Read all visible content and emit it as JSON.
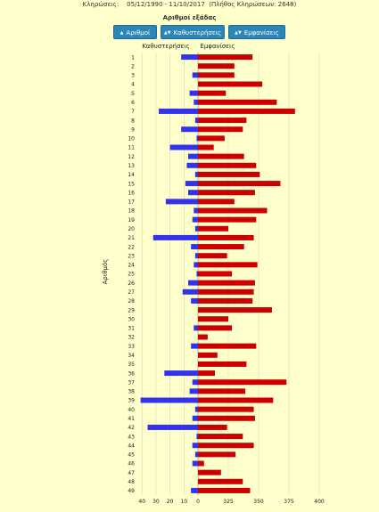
{
  "header": {
    "draws_label": "Κληρώσεις:",
    "date_range": "05/12/1990 - 11/10/2017",
    "draw_count_text": "(Πλήθος Κληρώσεων: 2648)"
  },
  "controls": {
    "sort_numbers": {
      "label": "Αριθμοί",
      "icon": "sort-up-icon"
    },
    "sort_delays": {
      "label": "Καθυστερήσεις",
      "icon": "sort-icon"
    },
    "sort_appearances": {
      "label": "Εμφανίσεις",
      "icon": "sort-icon"
    }
  },
  "colors": {
    "delays": "#3333ee",
    "appearances": "#cc0000",
    "background": "#ffffcc",
    "button": "#2b86b6"
  },
  "chart_data": {
    "type": "bar",
    "orientation": "horizontal",
    "title": "Αριθμοί εξάδας",
    "ylabel": "Αριθμός",
    "left_header": "Καθυστερήσεις",
    "right_header": "Εμφανίσεις",
    "categories": [
      "1",
      "2",
      "3",
      "4",
      "5",
      "6",
      "7",
      "8",
      "9",
      "10",
      "11",
      "12",
      "13",
      "14",
      "15",
      "16",
      "17",
      "18",
      "19",
      "20",
      "21",
      "22",
      "23",
      "24",
      "25",
      "26",
      "27",
      "28",
      "29",
      "30",
      "31",
      "32",
      "33",
      "34",
      "35",
      "36",
      "37",
      "38",
      "39",
      "40",
      "41",
      "42",
      "43",
      "44",
      "45",
      "46",
      "47",
      "48",
      "49"
    ],
    "series": [
      {
        "name": "Καθυστερήσεις",
        "values": [
          12,
          0,
          4,
          0,
          6,
          3,
          28,
          2,
          12,
          1,
          20,
          7,
          8,
          2,
          9,
          7,
          23,
          3,
          4,
          2,
          32,
          5,
          2,
          3,
          1,
          7,
          11,
          5,
          0,
          0,
          3,
          0,
          5,
          0,
          0,
          24,
          4,
          6,
          41,
          2,
          4,
          36,
          1,
          4,
          2,
          4,
          0,
          0,
          5
        ]
      },
      {
        "name": "Εμφανίσεις",
        "values": [
          345,
          330,
          330,
          353,
          323,
          365,
          380,
          340,
          337,
          322,
          313,
          338,
          348,
          351,
          368,
          347,
          330,
          357,
          348,
          325,
          346,
          338,
          324,
          349,
          328,
          347,
          346,
          345,
          361,
          325,
          328,
          308,
          348,
          316,
          340,
          314,
          373,
          339,
          362,
          346,
          347,
          324,
          337,
          346,
          331,
          305,
          319,
          337,
          343
        ]
      }
    ],
    "left_axis": {
      "ticks": [
        "40",
        "30",
        "20",
        "10",
        "0"
      ]
    },
    "right_axis": {
      "ticks": [
        "300",
        "325",
        "350",
        "375",
        "400"
      ]
    }
  }
}
